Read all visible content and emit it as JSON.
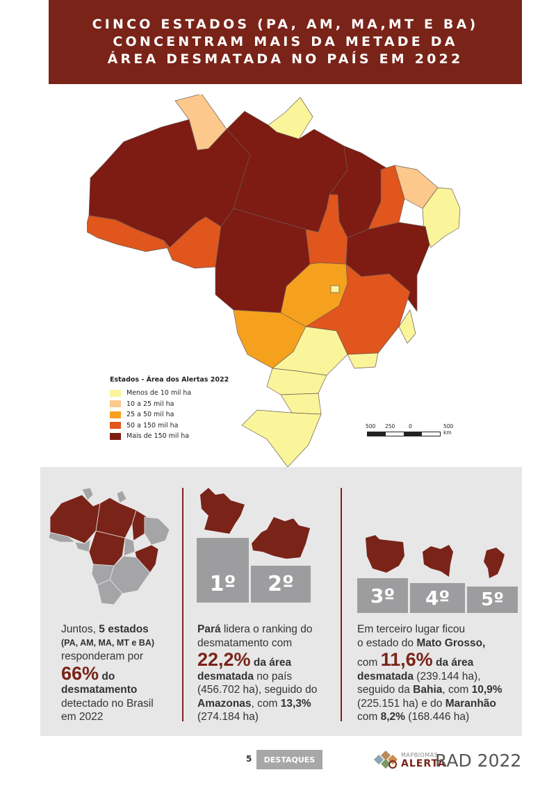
{
  "title": {
    "lines": [
      "CINCO ESTADOS (PA, AM, MA,MT E BA)",
      "CONCENTRAM MAIS DA METADE DA",
      "ÁREA DESMATADA NO PAÍS EM 2022"
    ]
  },
  "colors": {
    "brand": "#7a2318",
    "cat_lt10": "#faf59a",
    "cat_10_25": "#fcc88c",
    "cat_25_50": "#f6a11e",
    "cat_50_150": "#e0561c",
    "cat_gt150": "#7e1b12",
    "panel_bg": "#e7e7e8",
    "podium": "#9d9d9f"
  },
  "legend": {
    "title": "Estados - Área dos Alertas 2022",
    "items": [
      {
        "label": "Menos de 10 mil ha",
        "color": "#faf59a"
      },
      {
        "label": "10 a 25 mil ha",
        "color": "#fcc88c"
      },
      {
        "label": "25 a 50 mil ha",
        "color": "#f6a11e"
      },
      {
        "label": "50 a 150 mil ha",
        "color": "#e0561c"
      },
      {
        "label": "Mais de 150 mil ha",
        "color": "#7e1b12"
      }
    ]
  },
  "scale": {
    "labels": [
      "500",
      "250",
      "0",
      "500 km"
    ]
  },
  "columns": {
    "col1": {
      "l1a": "Juntos, ",
      "l1b": "5 estados",
      "l2": "(PA, AM, MA, MT e BA)",
      "l3": "responderam por",
      "l4a": "66%",
      "l4b": " do",
      "l5": "desmatamento",
      "l6": "detectado no Brasil",
      "l7": "em 2022"
    },
    "col2": {
      "l1a": "Pará",
      "l1b": " lidera o ranking do",
      "l2": "desmatamento com",
      "l3a": "22,2%",
      "l3b": " da área",
      "l4a": "desmatada",
      "l4b": " no país",
      "l5": "(456.702 ha), seguido do",
      "l6a": "Amazonas",
      "l6b": ", com ",
      "l6c": "13,3%",
      "l7": "(274.184 ha)"
    },
    "col3": {
      "l1": "Em terceiro lugar ficou",
      "l2a": "o estado do ",
      "l2b": "Mato Grosso,",
      "l3a": "com ",
      "l3b": "11,6%",
      "l3c": " da área",
      "l4a": "desmatada",
      "l4b": " (239.144 ha),",
      "l5a": "seguido da ",
      "l5b": "Bahia",
      "l5c": ", com ",
      "l5d": "10,9%",
      "l6a": "(225.151 ha) e do ",
      "l6b": "Maranhão",
      "l7a": "com ",
      "l7b": "8,2%",
      "l7c": " (168.446 ha)"
    }
  },
  "ranking": [
    "1º",
    "2º",
    "3º",
    "4º",
    "5º"
  ],
  "footer": {
    "page_number": "5",
    "section": "DESTAQUES",
    "brand_top": "MAPBIOMAS",
    "brand_main": "ALERTA",
    "report": "RAD 2022"
  }
}
